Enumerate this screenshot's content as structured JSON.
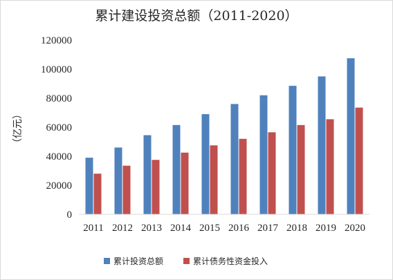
{
  "chart_data": {
    "type": "bar",
    "title": "累计建设投资总额（2011-2020）",
    "ylabel": "（亿元）",
    "xlabel": "",
    "categories": [
      "2011",
      "2012",
      "2013",
      "2014",
      "2015",
      "2016",
      "2017",
      "2018",
      "2019",
      "2020"
    ],
    "series": [
      {
        "name": "累计投资总额",
        "color": "#4f81bd",
        "values": [
          39000,
          46000,
          54500,
          61500,
          69000,
          76000,
          82000,
          88500,
          95000,
          107500
        ]
      },
      {
        "name": "累计债务性资金投入",
        "color": "#c0504d",
        "values": [
          28000,
          33500,
          37500,
          42500,
          47500,
          52000,
          56500,
          61500,
          65500,
          73500
        ]
      }
    ],
    "ylim": [
      0,
      120000
    ],
    "yticks": [
      0,
      20000,
      40000,
      60000,
      80000,
      100000,
      120000
    ],
    "grid": false,
    "legend": "bottom"
  }
}
